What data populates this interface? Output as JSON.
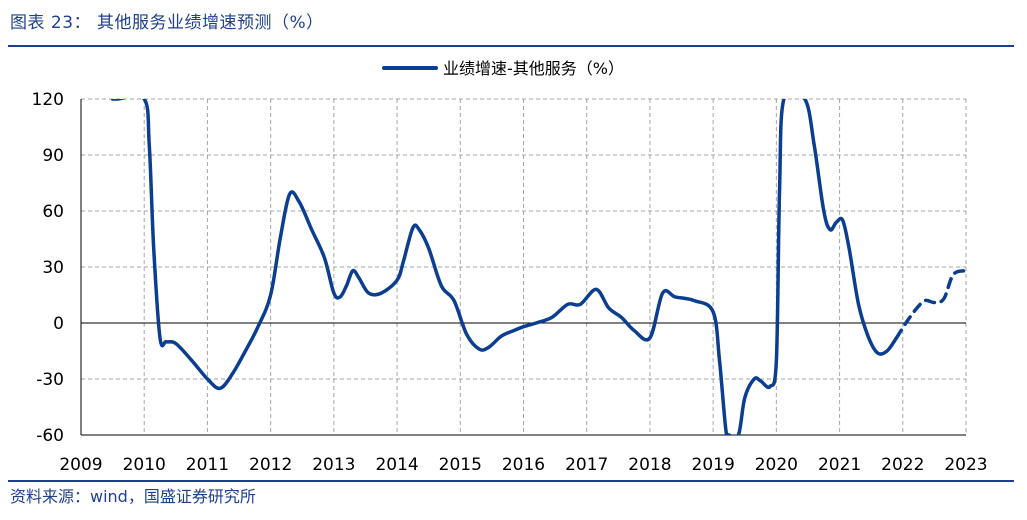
{
  "header": {
    "title": "图表 23：  其他服务业绩增速预测（%）"
  },
  "footer": {
    "source": "资料来源：wind，国盛证券研究所"
  },
  "colors": {
    "accent": "#1f3f8f",
    "series": "#0b3d91",
    "grid": "#a6a6a6"
  },
  "chart_data": {
    "type": "line",
    "title": "",
    "xlabel": "",
    "ylabel": "",
    "xlim": [
      2009,
      2023
    ],
    "ylim": [
      -60,
      120
    ],
    "yticks": [
      120,
      90,
      60,
      30,
      0,
      -30,
      -60
    ],
    "xticks": [
      2009,
      2010,
      2011,
      2012,
      2013,
      2014,
      2015,
      2016,
      2017,
      2018,
      2019,
      2020,
      2021,
      2022,
      2023
    ],
    "grid": true,
    "legend_position": "top-center",
    "series": [
      {
        "name": "业绩增速-其他服务（%）",
        "color": "#0b3d91",
        "dashed_from": 2021.9,
        "points": [
          [
            2009.5,
            120
          ],
          [
            2009.58,
            120
          ],
          [
            2010.0,
            120
          ],
          [
            2010.08,
            95
          ],
          [
            2010.15,
            40
          ],
          [
            2010.25,
            -8
          ],
          [
            2010.35,
            -10
          ],
          [
            2010.5,
            -11
          ],
          [
            2010.75,
            -20
          ],
          [
            2011.0,
            -30
          ],
          [
            2011.2,
            -35
          ],
          [
            2011.4,
            -27
          ],
          [
            2011.6,
            -15
          ],
          [
            2011.8,
            -2
          ],
          [
            2012.0,
            15
          ],
          [
            2012.15,
            45
          ],
          [
            2012.3,
            69
          ],
          [
            2012.45,
            65
          ],
          [
            2012.65,
            50
          ],
          [
            2012.85,
            35
          ],
          [
            2013.0,
            16
          ],
          [
            2013.1,
            14
          ],
          [
            2013.2,
            20
          ],
          [
            2013.3,
            28
          ],
          [
            2013.4,
            24
          ],
          [
            2013.55,
            16
          ],
          [
            2013.75,
            16
          ],
          [
            2014.0,
            23
          ],
          [
            2014.1,
            33
          ],
          [
            2014.25,
            51
          ],
          [
            2014.35,
            50
          ],
          [
            2014.5,
            40
          ],
          [
            2014.7,
            20
          ],
          [
            2014.9,
            12
          ],
          [
            2015.1,
            -6
          ],
          [
            2015.3,
            -14
          ],
          [
            2015.45,
            -13
          ],
          [
            2015.65,
            -7
          ],
          [
            2015.85,
            -4
          ],
          [
            2016.0,
            -2
          ],
          [
            2016.2,
            0
          ],
          [
            2016.45,
            3
          ],
          [
            2016.7,
            10
          ],
          [
            2016.9,
            10
          ],
          [
            2017.15,
            18
          ],
          [
            2017.35,
            8
          ],
          [
            2017.55,
            3
          ],
          [
            2017.75,
            -4
          ],
          [
            2018.0,
            -8
          ],
          [
            2018.2,
            16
          ],
          [
            2018.4,
            14
          ],
          [
            2018.7,
            12
          ],
          [
            2019.0,
            6
          ],
          [
            2019.1,
            -20
          ],
          [
            2019.2,
            -57
          ],
          [
            2019.25,
            -60
          ],
          [
            2019.4,
            -60
          ],
          [
            2019.5,
            -40
          ],
          [
            2019.65,
            -30
          ],
          [
            2019.75,
            -31
          ],
          [
            2019.9,
            -34
          ],
          [
            2020.0,
            -20
          ],
          [
            2020.05,
            70
          ],
          [
            2020.12,
            120
          ],
          [
            2020.45,
            120
          ],
          [
            2020.6,
            95
          ],
          [
            2020.75,
            60
          ],
          [
            2020.85,
            50
          ],
          [
            2020.95,
            54
          ],
          [
            2021.05,
            55
          ],
          [
            2021.15,
            40
          ],
          [
            2021.3,
            10
          ],
          [
            2021.45,
            -7
          ],
          [
            2021.6,
            -16
          ],
          [
            2021.75,
            -15
          ],
          [
            2021.9,
            -8
          ],
          [
            2022.05,
            0
          ],
          [
            2022.2,
            7
          ],
          [
            2022.35,
            12
          ],
          [
            2022.5,
            11
          ],
          [
            2022.65,
            13
          ],
          [
            2022.8,
            26
          ],
          [
            2023.0,
            28
          ]
        ]
      }
    ]
  }
}
